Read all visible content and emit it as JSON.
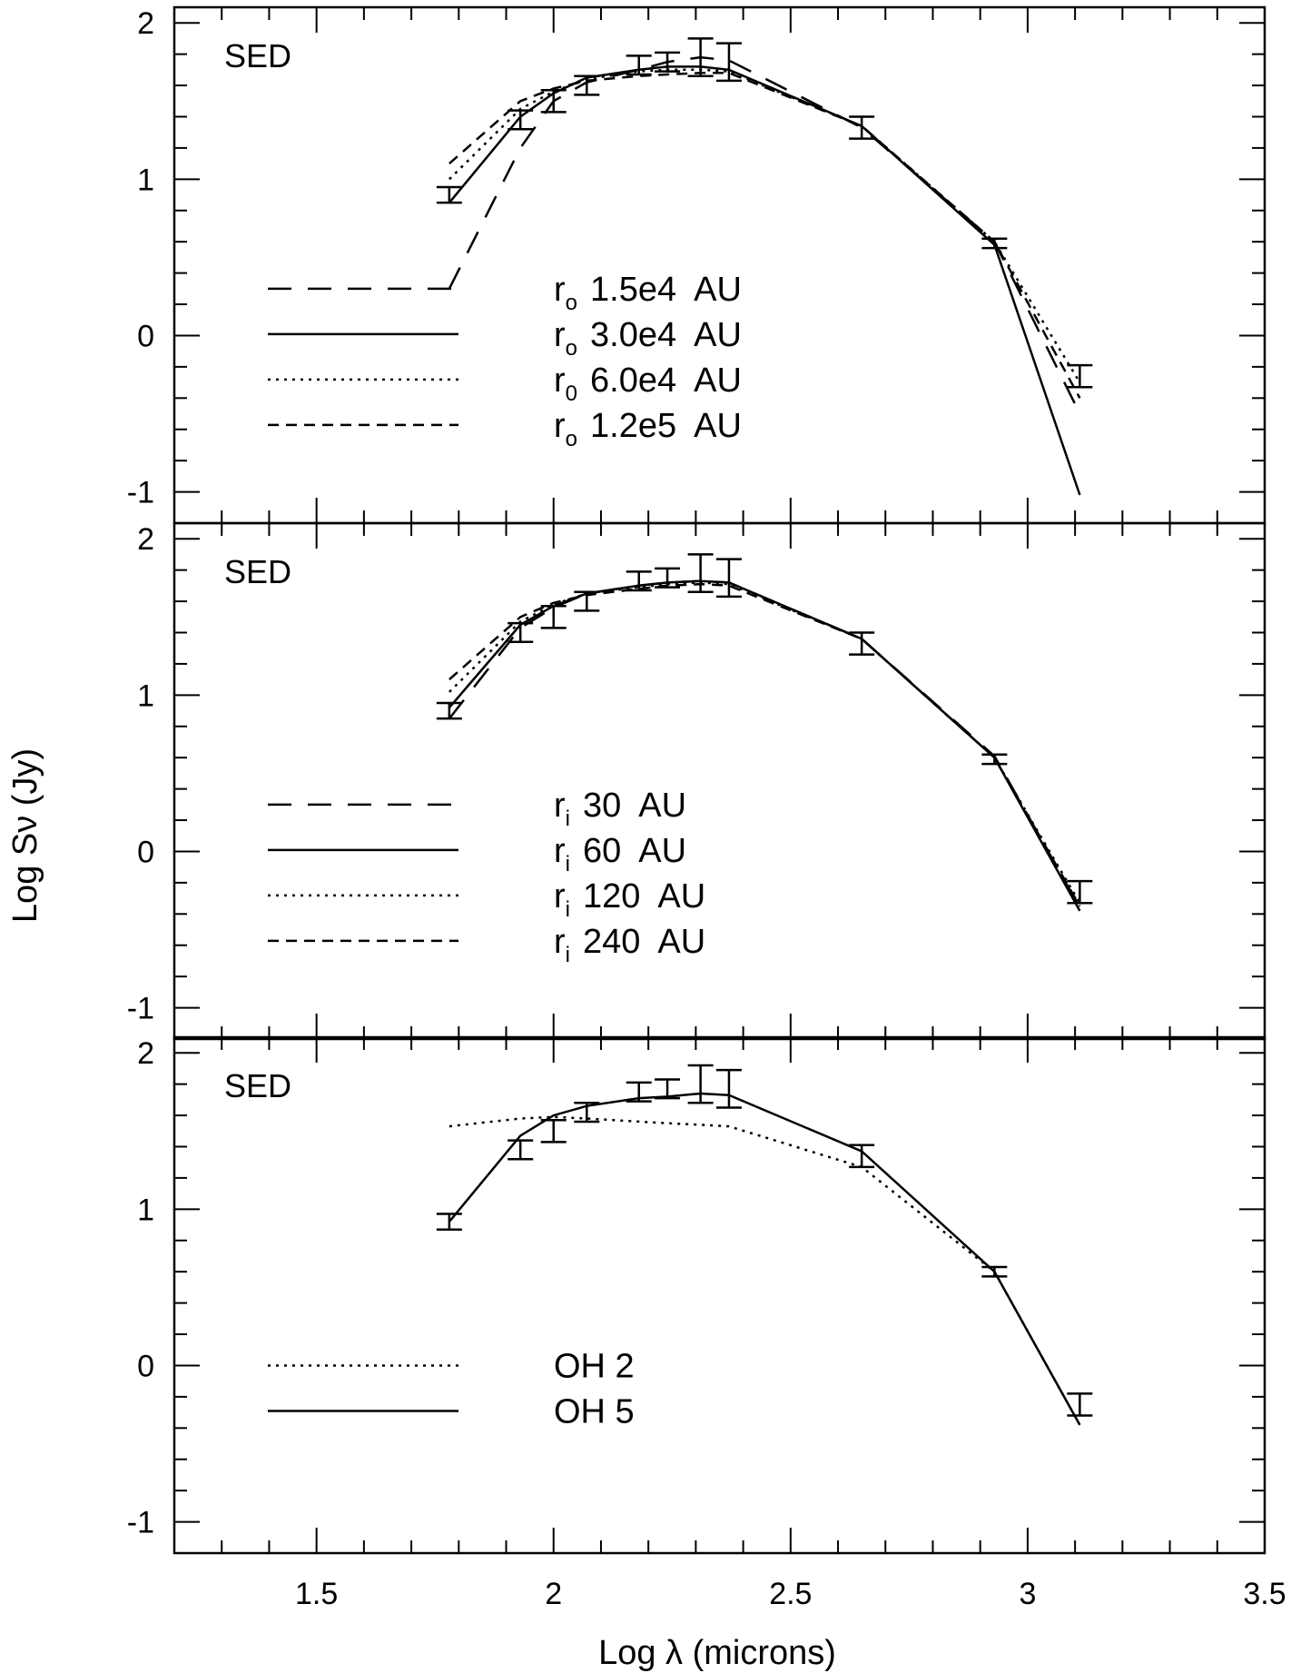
{
  "figure": {
    "xlabel": "Log λ (microns)",
    "ylabel": "Log Sν (Jy)"
  },
  "chart_data": [
    {
      "type": "line",
      "panel_label": "SED",
      "xlim": [
        1.2,
        3.5
      ],
      "ylim": [
        -1.2,
        2.1
      ],
      "x_ticks": [
        "1.5",
        "2",
        "2.5",
        "3",
        "3.5"
      ],
      "y_ticks": [
        "2",
        "1",
        "0",
        "-1"
      ],
      "x": [
        1.78,
        1.93,
        2.0,
        2.07,
        2.18,
        2.24,
        2.31,
        2.37,
        2.65,
        2.93,
        3.11
      ],
      "observed": {
        "y": [
          0.9,
          1.38,
          1.5,
          1.6,
          1.73,
          1.75,
          1.78,
          1.75,
          1.33,
          0.59,
          -0.26
        ],
        "err": [
          0.05,
          0.06,
          0.07,
          0.06,
          0.06,
          0.06,
          0.12,
          0.12,
          0.07,
          0.03,
          0.07
        ]
      },
      "legend": [
        {
          "symbol": "r",
          "sub": "o",
          "value": "1.5e4  AU",
          "dash": "long"
        },
        {
          "symbol": "r",
          "sub": "o",
          "value": "3.0e4  AU",
          "dash": "solid"
        },
        {
          "symbol": "r",
          "sub": "0",
          "value": "6.0e4  AU",
          "dash": "dotted"
        },
        {
          "symbol": "r",
          "sub": "o",
          "value": "1.2e5  AU",
          "dash": "short"
        }
      ],
      "legend_extra": {
        "flat_segment_y": 0.3
      },
      "series": [
        {
          "dash": "long",
          "y": [
            0.3,
            1.2,
            1.5,
            1.62,
            1.7,
            1.75,
            1.78,
            1.76,
            1.33,
            0.6,
            -0.5
          ]
        },
        {
          "dash": "solid",
          "y": [
            0.85,
            1.4,
            1.55,
            1.65,
            1.7,
            1.72,
            1.72,
            1.7,
            1.34,
            0.58,
            -1.02
          ]
        },
        {
          "dash": "dotted",
          "y": [
            1.0,
            1.45,
            1.56,
            1.64,
            1.69,
            1.7,
            1.7,
            1.69,
            1.34,
            0.6,
            -0.3
          ]
        },
        {
          "dash": "short",
          "y": [
            1.1,
            1.5,
            1.58,
            1.63,
            1.66,
            1.67,
            1.68,
            1.68,
            1.34,
            0.6,
            -0.4
          ]
        }
      ]
    },
    {
      "type": "line",
      "panel_label": "SED",
      "xlim": [
        1.2,
        3.5
      ],
      "ylim": [
        -1.2,
        2.1
      ],
      "x_ticks": [
        "1.5",
        "2",
        "2.5",
        "3",
        "3.5"
      ],
      "y_ticks": [
        "2",
        "1",
        "0",
        "-1"
      ],
      "x": [
        1.78,
        1.93,
        2.0,
        2.07,
        2.18,
        2.24,
        2.31,
        2.37,
        2.65,
        2.93,
        3.11
      ],
      "observed": {
        "y": [
          0.9,
          1.4,
          1.5,
          1.6,
          1.73,
          1.75,
          1.78,
          1.75,
          1.33,
          0.59,
          -0.26
        ],
        "err": [
          0.05,
          0.06,
          0.07,
          0.06,
          0.06,
          0.06,
          0.12,
          0.12,
          0.07,
          0.03,
          0.07
        ]
      },
      "legend": [
        {
          "symbol": "r",
          "sub": "i",
          "value": "30  AU",
          "dash": "long"
        },
        {
          "symbol": "r",
          "sub": "i",
          "value": "60  AU",
          "dash": "solid"
        },
        {
          "symbol": "r",
          "sub": "i",
          "value": "120  AU",
          "dash": "dotted"
        },
        {
          "symbol": "r",
          "sub": "i",
          "value": "240  AU",
          "dash": "short"
        }
      ],
      "series": [
        {
          "dash": "long",
          "y": [
            0.85,
            1.43,
            1.56,
            1.65,
            1.7,
            1.72,
            1.73,
            1.72,
            1.36,
            0.61,
            -0.36
          ]
        },
        {
          "dash": "solid",
          "y": [
            0.92,
            1.45,
            1.57,
            1.65,
            1.7,
            1.72,
            1.73,
            1.72,
            1.36,
            0.6,
            -0.38
          ]
        },
        {
          "dash": "dotted",
          "y": [
            1.02,
            1.47,
            1.58,
            1.65,
            1.69,
            1.71,
            1.72,
            1.71,
            1.36,
            0.6,
            -0.33
          ]
        },
        {
          "dash": "short",
          "y": [
            1.1,
            1.5,
            1.59,
            1.64,
            1.68,
            1.7,
            1.71,
            1.7,
            1.36,
            0.6,
            -0.35
          ]
        }
      ]
    },
    {
      "type": "line",
      "panel_label": "SED",
      "xlim": [
        1.2,
        3.5
      ],
      "ylim": [
        -1.2,
        2.1
      ],
      "x_ticks": [
        "1.5",
        "2",
        "2.5",
        "3",
        "3.5"
      ],
      "y_ticks": [
        "2",
        "1",
        "0",
        "-1"
      ],
      "x": [
        1.78,
        1.93,
        2.0,
        2.07,
        2.18,
        2.24,
        2.31,
        2.37,
        2.65,
        2.93,
        3.11
      ],
      "observed": {
        "y": [
          0.92,
          1.38,
          1.5,
          1.62,
          1.75,
          1.77,
          1.8,
          1.77,
          1.34,
          0.6,
          -0.25
        ],
        "err": [
          0.05,
          0.06,
          0.07,
          0.06,
          0.06,
          0.06,
          0.12,
          0.12,
          0.07,
          0.03,
          0.07
        ]
      },
      "legend": [
        {
          "symbol": "",
          "sub": "",
          "value": "OH 2",
          "dash": "dotted"
        },
        {
          "symbol": "",
          "sub": "",
          "value": "OH 5",
          "dash": "solid"
        }
      ],
      "series": [
        {
          "dash": "dotted",
          "x": [
            1.78,
            1.93,
            2.0,
            2.07,
            2.18,
            2.24,
            2.31,
            2.37,
            2.65,
            2.93,
            3.11
          ],
          "y": [
            1.53,
            1.58,
            1.59,
            1.58,
            1.56,
            1.55,
            1.54,
            1.53,
            1.27,
            0.6,
            -0.38
          ]
        },
        {
          "dash": "solid",
          "x": [
            1.78,
            1.93,
            2.0,
            2.07,
            2.18,
            2.24,
            2.31,
            2.37,
            2.65,
            2.93,
            3.11
          ],
          "y": [
            0.92,
            1.47,
            1.6,
            1.66,
            1.71,
            1.72,
            1.74,
            1.73,
            1.37,
            0.6,
            -0.38
          ]
        }
      ]
    }
  ]
}
